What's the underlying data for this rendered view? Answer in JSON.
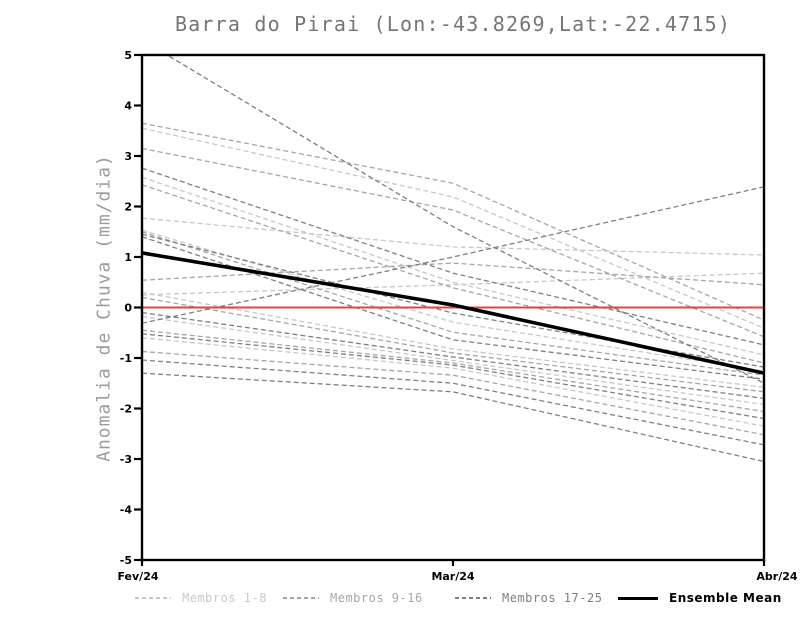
{
  "title": "Barra do Pirai (Lon:-43.8269,Lat:-22.4715)",
  "y_axis": {
    "label": "Anomalia de Chuva (mm/dia)",
    "ticks": [
      5,
      4,
      3,
      2,
      1,
      0,
      -1,
      -2,
      -3,
      -4,
      -5
    ]
  },
  "x_axis": {
    "labels": [
      "Fev/24",
      "Mar/24",
      "Abr/24"
    ]
  },
  "legend": {
    "items": [
      {
        "label": "Membros 1-8",
        "color": "#c8c8c8",
        "style": "dashed"
      },
      {
        "label": "Membros 9-16",
        "color": "#a6a6a6",
        "style": "dashed"
      },
      {
        "label": "Membros 17-25",
        "color": "#7f7f7f",
        "style": "dashed"
      },
      {
        "label": "Ensemble Mean",
        "color": "#000000",
        "style": "solid"
      }
    ]
  },
  "chart_data": {
    "type": "line",
    "title": "Barra do Pirai (Lon:-43.8269,Lat:-22.4715)",
    "xlabel": "",
    "ylabel": "Anomalia de Chuva (mm/dia)",
    "x_categories": [
      "Fev/24",
      "Mar/24",
      "Abr/24"
    ],
    "ylim": [
      -5,
      5
    ],
    "grid": false,
    "legend_position": "bottom",
    "zero_line": {
      "value": 0,
      "color": "#f03c3c"
    },
    "groups": [
      {
        "name": "Membros 1-8",
        "color": "#c8c8c8"
      },
      {
        "name": "Membros 9-16",
        "color": "#a6a6a6"
      },
      {
        "name": "Membros 17-25",
        "color": "#7f7f7f"
      }
    ],
    "members": [
      {
        "group": 0,
        "values": [
          3.55,
          2.19,
          -0.41
        ]
      },
      {
        "group": 0,
        "values": [
          2.58,
          0.5,
          -0.94
        ]
      },
      {
        "group": 0,
        "values": [
          1.53,
          -0.29,
          -1.26
        ]
      },
      {
        "group": 0,
        "values": [
          0.3,
          -0.82,
          -1.58
        ]
      },
      {
        "group": 0,
        "values": [
          -0.18,
          -1.05,
          -1.92
        ]
      },
      {
        "group": 0,
        "values": [
          -0.6,
          -1.2,
          -2.35
        ]
      },
      {
        "group": 0,
        "values": [
          0.25,
          0.45,
          0.68
        ]
      },
      {
        "group": 0,
        "values": [
          1.77,
          1.2,
          1.04
        ]
      },
      {
        "group": 1,
        "values": [
          3.65,
          2.46,
          -0.25
        ]
      },
      {
        "group": 1,
        "values": [
          3.15,
          1.93,
          -0.58
        ]
      },
      {
        "group": 1,
        "values": [
          2.43,
          0.39,
          -1.1
        ]
      },
      {
        "group": 1,
        "values": [
          1.5,
          -0.49,
          -1.34
        ]
      },
      {
        "group": 1,
        "values": [
          0.2,
          -0.9,
          -1.67
        ]
      },
      {
        "group": 1,
        "values": [
          -0.45,
          -1.1,
          -2.06
        ]
      },
      {
        "group": 1,
        "values": [
          -0.87,
          -1.34,
          -2.52
        ]
      },
      {
        "group": 1,
        "values": [
          0.54,
          0.88,
          0.45
        ]
      },
      {
        "group": 2,
        "values": [
          2.76,
          0.68,
          -0.74
        ]
      },
      {
        "group": 2,
        "values": [
          1.45,
          -0.11,
          -1.18
        ]
      },
      {
        "group": 2,
        "values": [
          1.4,
          -0.64,
          -1.42
        ]
      },
      {
        "group": 2,
        "values": [
          -0.1,
          -0.98,
          -1.8
        ]
      },
      {
        "group": 2,
        "values": [
          -0.52,
          -1.14,
          -2.2
        ]
      },
      {
        "group": 2,
        "values": [
          -1.04,
          -1.5,
          -2.72
        ]
      },
      {
        "group": 2,
        "values": [
          -1.3,
          -1.67,
          -3.05
        ]
      },
      {
        "group": 2,
        "values": [
          -0.31,
          1.0,
          2.39
        ]
      },
      {
        "group": 2,
        "values": [
          5.3,
          1.6,
          -1.5
        ]
      }
    ],
    "ensemble_mean": {
      "name": "Ensemble Mean",
      "color": "#000000",
      "values": [
        1.08,
        0.05,
        -1.3
      ]
    }
  }
}
